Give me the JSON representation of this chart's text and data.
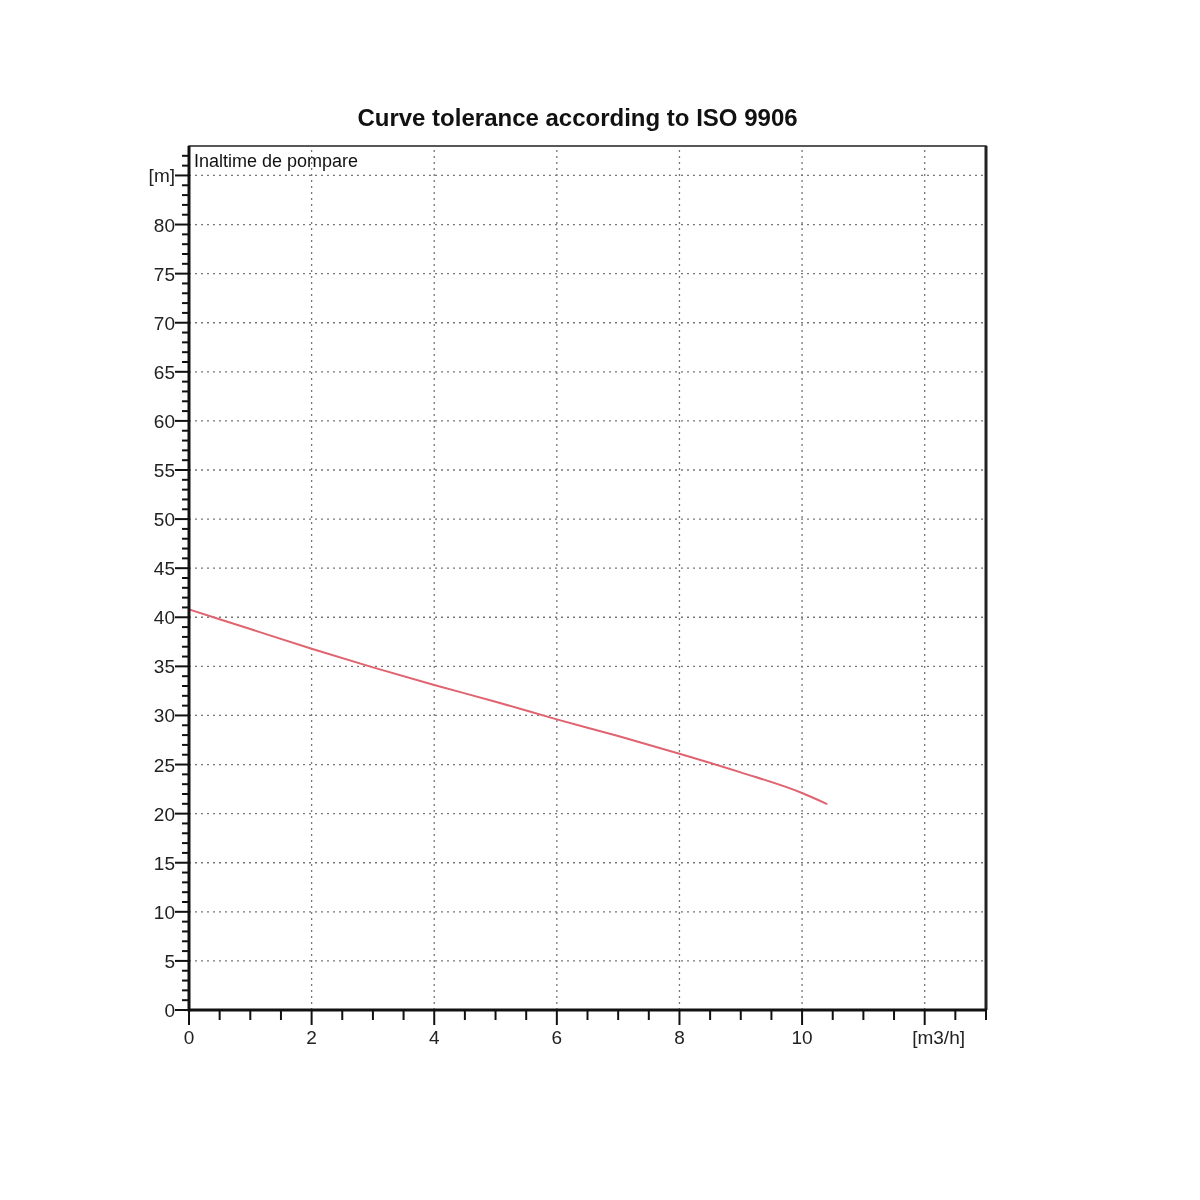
{
  "chart_data": {
    "type": "line",
    "title": "Curve tolerance according to ISO 9906",
    "xlabel": "[m3/h]",
    "ylabel": "Inaltime de pompare",
    "xlim": [
      0,
      13
    ],
    "xticks": [
      0,
      {
        "value": 0.5,
        "label": null
      },
      {
        "value": 1,
        "label": null
      },
      {
        "value": 1.5,
        "label": null
      },
      2,
      {
        "value": 2.5,
        "label": null
      },
      {
        "value": 3,
        "label": null
      },
      {
        "value": 3.5,
        "label": null
      },
      4,
      {
        "value": 4.5,
        "label": null
      },
      {
        "value": 5,
        "label": null
      },
      {
        "value": 5.5,
        "label": null
      },
      6,
      {
        "value": 6.5,
        "label": null
      },
      {
        "value": 7,
        "label": null
      },
      {
        "value": 7.5,
        "label": null
      },
      8,
      {
        "value": 8.5,
        "label": null
      },
      {
        "value": 9,
        "label": null
      },
      {
        "value": 9.5,
        "label": null
      },
      10,
      {
        "value": 10.5,
        "label": null
      },
      {
        "value": 11,
        "label": null
      },
      {
        "value": 11.5,
        "label": null
      },
      {
        "value": 12,
        "label": null
      },
      {
        "value": 12.5,
        "label": null
      },
      {
        "value": 13,
        "label": null
      }
    ],
    "ylim": [
      0,
      88
    ],
    "yticks": [
      0,
      {
        "value": 1,
        "label": null
      },
      {
        "value": 2,
        "label": null
      },
      {
        "value": 3,
        "label": null
      },
      {
        "value": 4,
        "label": null
      },
      5,
      {
        "value": 6,
        "label": null
      },
      {
        "value": 7,
        "label": null
      },
      {
        "value": 8,
        "label": null
      },
      {
        "value": 9,
        "label": null
      },
      10,
      {
        "value": 11,
        "label": null
      },
      {
        "value": 12,
        "label": null
      },
      {
        "value": 13,
        "label": null
      },
      {
        "value": 14,
        "label": null
      },
      15,
      {
        "value": 16,
        "label": null
      },
      {
        "value": 17,
        "label": null
      },
      {
        "value": 18,
        "label": null
      },
      {
        "value": 19,
        "label": null
      },
      20,
      {
        "value": 21,
        "label": null
      },
      {
        "value": 22,
        "label": null
      },
      {
        "value": 23,
        "label": null
      },
      {
        "value": 24,
        "label": null
      },
      25,
      {
        "value": 26,
        "label": null
      },
      {
        "value": 27,
        "label": null
      },
      {
        "value": 28,
        "label": null
      },
      {
        "value": 29,
        "label": null
      },
      30,
      {
        "value": 31,
        "label": null
      },
      {
        "value": 32,
        "label": null
      },
      {
        "value": 33,
        "label": null
      },
      {
        "value": 34,
        "label": null
      },
      35,
      {
        "value": 36,
        "label": null
      },
      {
        "value": 37,
        "label": null
      },
      {
        "value": 38,
        "label": null
      },
      {
        "value": 39,
        "label": null
      },
      40,
      {
        "value": 41,
        "label": null
      },
      {
        "value": 42,
        "label": null
      },
      {
        "value": 43,
        "label": null
      },
      {
        "value": 44,
        "label": null
      },
      45,
      {
        "value": 46,
        "label": null
      },
      {
        "value": 47,
        "label": null
      },
      {
        "value": 48,
        "label": null
      },
      {
        "value": 49,
        "label": null
      },
      50,
      {
        "value": 51,
        "label": null
      },
      {
        "value": 52,
        "label": null
      },
      {
        "value": 53,
        "label": null
      },
      {
        "value": 54,
        "label": null
      },
      55,
      {
        "value": 56,
        "label": null
      },
      {
        "value": 57,
        "label": null
      },
      {
        "value": 58,
        "label": null
      },
      {
        "value": 59,
        "label": null
      },
      60,
      {
        "value": 61,
        "label": null
      },
      {
        "value": 62,
        "label": null
      },
      {
        "value": 63,
        "label": null
      },
      {
        "value": 64,
        "label": null
      },
      65,
      {
        "value": 66,
        "label": null
      },
      {
        "value": 67,
        "label": null
      },
      {
        "value": 68,
        "label": null
      },
      {
        "value": 69,
        "label": null
      },
      70,
      {
        "value": 71,
        "label": null
      },
      {
        "value": 72,
        "label": null
      },
      {
        "value": 73,
        "label": null
      },
      {
        "value": 74,
        "label": null
      },
      75,
      {
        "value": 76,
        "label": null
      },
      {
        "value": 77,
        "label": null
      },
      {
        "value": 78,
        "label": null
      },
      {
        "value": 79,
        "label": null
      },
      80,
      {
        "value": 81,
        "label": null
      },
      {
        "value": 82,
        "label": null
      },
      {
        "value": 83,
        "label": null
      },
      {
        "value": 84,
        "label": null
      },
      {
        "value": 85,
        "label": "[m]"
      },
      {
        "value": 86,
        "label": null
      },
      {
        "value": 87,
        "label": null
      }
    ],
    "grid": true,
    "series": [
      {
        "color": "#e06470",
        "x": [
          0,
          1,
          2,
          3,
          4,
          5,
          6,
          7,
          8,
          9,
          10,
          10.4
        ],
        "values": [
          40.8,
          38.8,
          36.8,
          34.9,
          33.1,
          31.4,
          29.6,
          27.9,
          26.1,
          24.2,
          22.1,
          21
        ]
      }
    ]
  }
}
